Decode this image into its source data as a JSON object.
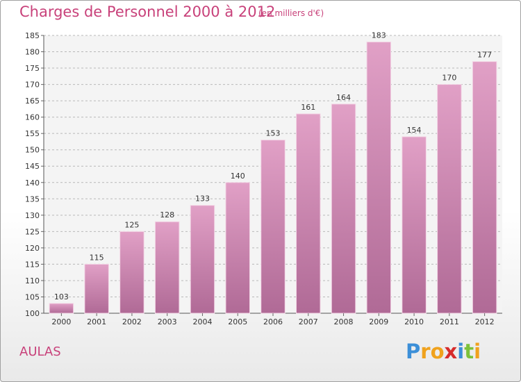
{
  "chart_data": {
    "type": "bar",
    "title": "Charges de Personnel 2000 à 2012",
    "subtitle": "(en milliers d'€)",
    "categories": [
      "2000",
      "2001",
      "2002",
      "2003",
      "2004",
      "2005",
      "2006",
      "2007",
      "2008",
      "2009",
      "2010",
      "2011",
      "2012"
    ],
    "values": [
      103,
      115,
      125,
      128,
      133,
      140,
      153,
      161,
      164,
      183,
      154,
      170,
      177
    ],
    "ylim": [
      100,
      185
    ],
    "yticks": [
      "100",
      "105",
      "110",
      "115",
      "120",
      "125",
      "130",
      "135",
      "140",
      "145",
      "150",
      "155",
      "160",
      "165",
      "170",
      "175",
      "180",
      "185"
    ],
    "grid": true,
    "bar_color": "#e1a0c6",
    "bar_color_dark": "#b06a96"
  },
  "place_name": "AULAS",
  "logo": {
    "letters": [
      "P",
      "r",
      "o",
      "x",
      "i",
      "t",
      "i"
    ],
    "colors": [
      "#3c8fd8",
      "#f0a21d",
      "#f0a21d",
      "#d62c2c",
      "#3c8fd8",
      "#7cc13b",
      "#f0a21d"
    ]
  }
}
